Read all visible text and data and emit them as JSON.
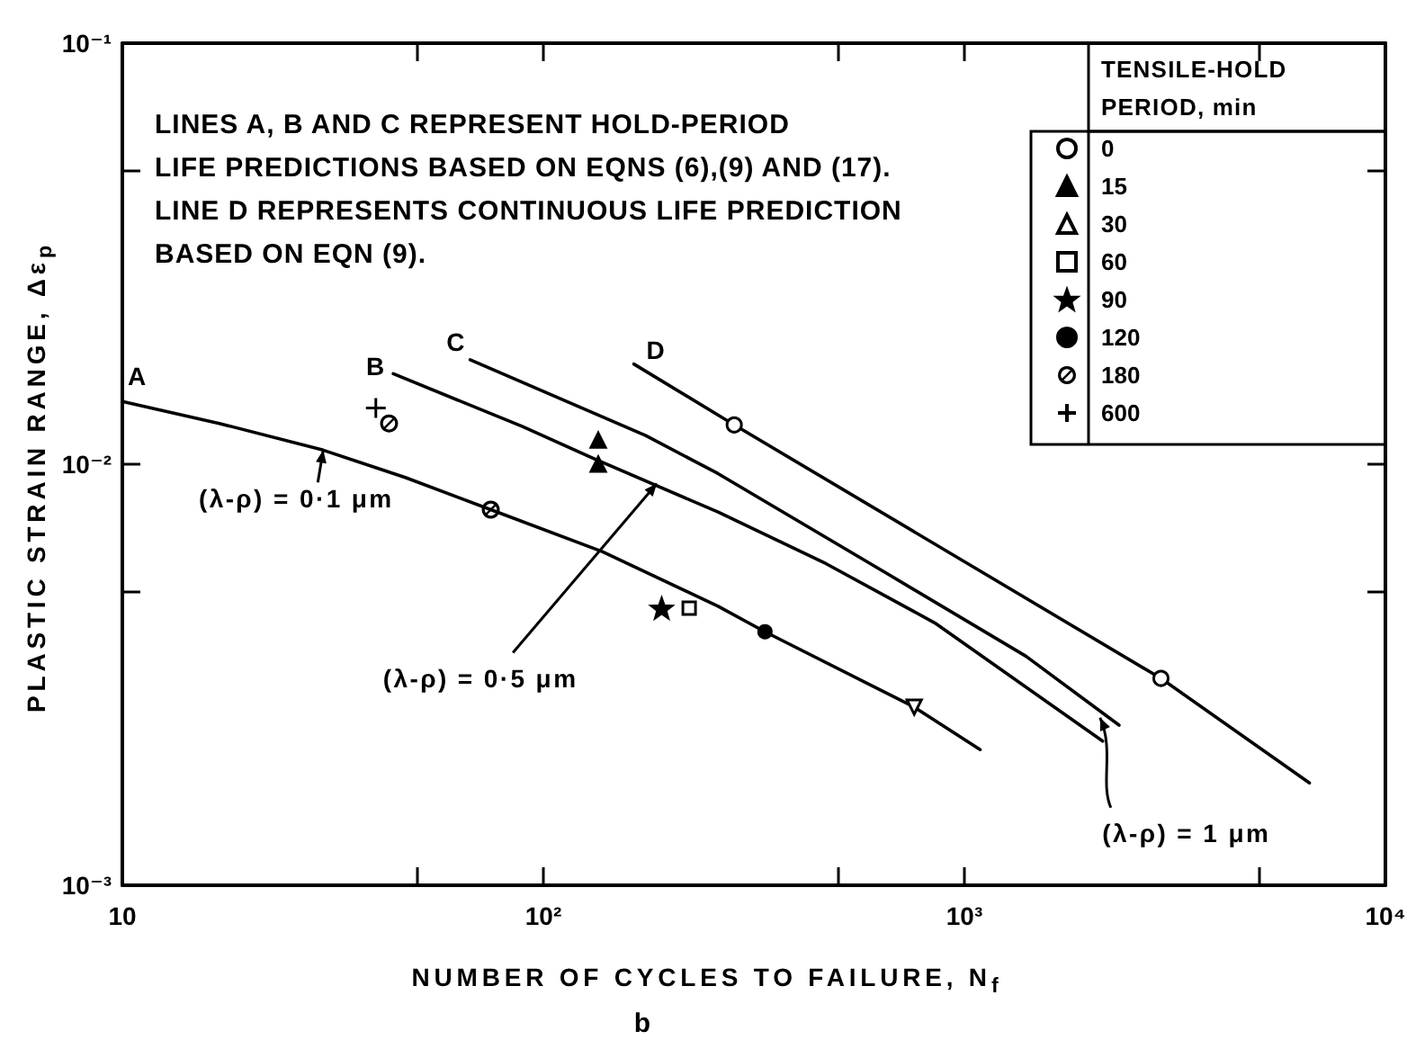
{
  "chart_data": {
    "type": "scatter",
    "xlabel": "NUMBER OF CYCLES TO FAILURE, N$_{f}$",
    "ylabel": "PLASTIC STRAIN RANGE, Δε$_{p}$",
    "log": "xy",
    "xlim": [
      10,
      10000
    ],
    "ylim": [
      0.001,
      0.1
    ],
    "xticks": [
      10,
      {
        "value": 50,
        "label": null
      },
      {
        "value": 100,
        "label": "10²"
      },
      {
        "value": 500,
        "label": null
      },
      {
        "value": 1000,
        "label": "10³"
      },
      {
        "value": 5000,
        "label": null
      },
      {
        "value": 10000,
        "label": "10⁴"
      }
    ],
    "yticks": [
      {
        "value": 0.001,
        "label": "10⁻³"
      },
      {
        "value": 0.005,
        "label": null
      },
      {
        "value": 0.01,
        "label": "10⁻²"
      },
      {
        "value": 0.05,
        "label": null
      },
      {
        "value": 0.1,
        "label": "10⁻¹"
      }
    ],
    "grid": false,
    "legend": "top right",
    "legend_title": "TENSILE-HOLD\nPERIOD, min",
    "series": [
      {
        "name": "A",
        "type": "line",
        "color": "#000000",
        "marker": "none",
        "x": [
          10,
          17,
          30,
          47,
          75,
          138,
          260,
          336,
          760,
          1090
        ],
        "values": [
          0.0141,
          0.0125,
          0.0108,
          0.0093,
          0.0078,
          0.0062,
          0.0046,
          0.004,
          0.00265,
          0.0021
        ]
      },
      {
        "name": "B",
        "type": "line",
        "color": "#000000",
        "marker": "none",
        "x": [
          44,
          89,
          135,
          260,
          470,
          850,
          2130
        ],
        "values": [
          0.0164,
          0.0123,
          0.0102,
          0.0077,
          0.0058,
          0.0042,
          0.0022
        ]
      },
      {
        "name": "C",
        "type": "line",
        "color": "#000000",
        "marker": "none",
        "x": [
          67,
          175,
          260,
          655,
          1400,
          2330
        ],
        "values": [
          0.0177,
          0.0117,
          0.0095,
          0.0055,
          0.0035,
          0.0024
        ]
      },
      {
        "name": "D",
        "type": "line",
        "color": "#000000",
        "marker": "none",
        "x": [
          164,
          284,
          2930,
          6600
        ],
        "values": [
          0.0173,
          0.0124,
          0.0031,
          0.00175
        ]
      },
      {
        "name": "0",
        "color": "#000000",
        "marker": "circle",
        "x": [
          284,
          2930
        ],
        "values": [
          0.0124,
          0.0031
        ]
      },
      {
        "name": "15",
        "color": "#000000",
        "marker": "triangle",
        "x": [
          135,
          135
        ],
        "values": [
          0.0114,
          0.01
        ]
      },
      {
        "name": "30",
        "color": "#000000",
        "marker": "triangle-down",
        "x": [
          760
        ],
        "values": [
          0.00265
        ]
      },
      {
        "name": "60",
        "color": "#000000",
        "marker": "square",
        "x": [
          222
        ],
        "values": [
          0.00455
        ]
      },
      {
        "name": "90",
        "color": "#000000",
        "marker": "star",
        "x": [
          191
        ],
        "values": [
          0.00455
        ]
      },
      {
        "name": "120",
        "color": "#000000",
        "marker": "circle-filled",
        "x": [
          336
        ],
        "values": [
          0.004
        ]
      },
      {
        "name": "180",
        "color": "#000000",
        "marker": "circle-slashed",
        "x": [
          43,
          75
        ],
        "values": [
          0.0125,
          0.0078
        ]
      },
      {
        "name": "600",
        "color": "#000000",
        "marker": "cross",
        "x": [
          40
        ],
        "values": [
          0.0136
        ]
      }
    ],
    "annotations": [
      "LINES A, B AND C REPRESENT HOLD-PERIOD\nLIFE PREDICTIONS BASED ON EQNS (6),(9) AND (17).\nLINE D REPRESENTS CONTINUOUS LIFE PREDICTION\nBASED ON EQN (9).",
      {
        "text": "(λ-ρ) = 0·1 μm",
        "x": 30,
        "y": 0.0108
      },
      {
        "text": "(λ-ρ) = 0·5 μm",
        "x": 186,
        "y": 0.009
      },
      {
        "text": "(λ-ρ) = 1 μm",
        "x": 2100,
        "y": 0.0025
      },
      "b"
    ]
  }
}
